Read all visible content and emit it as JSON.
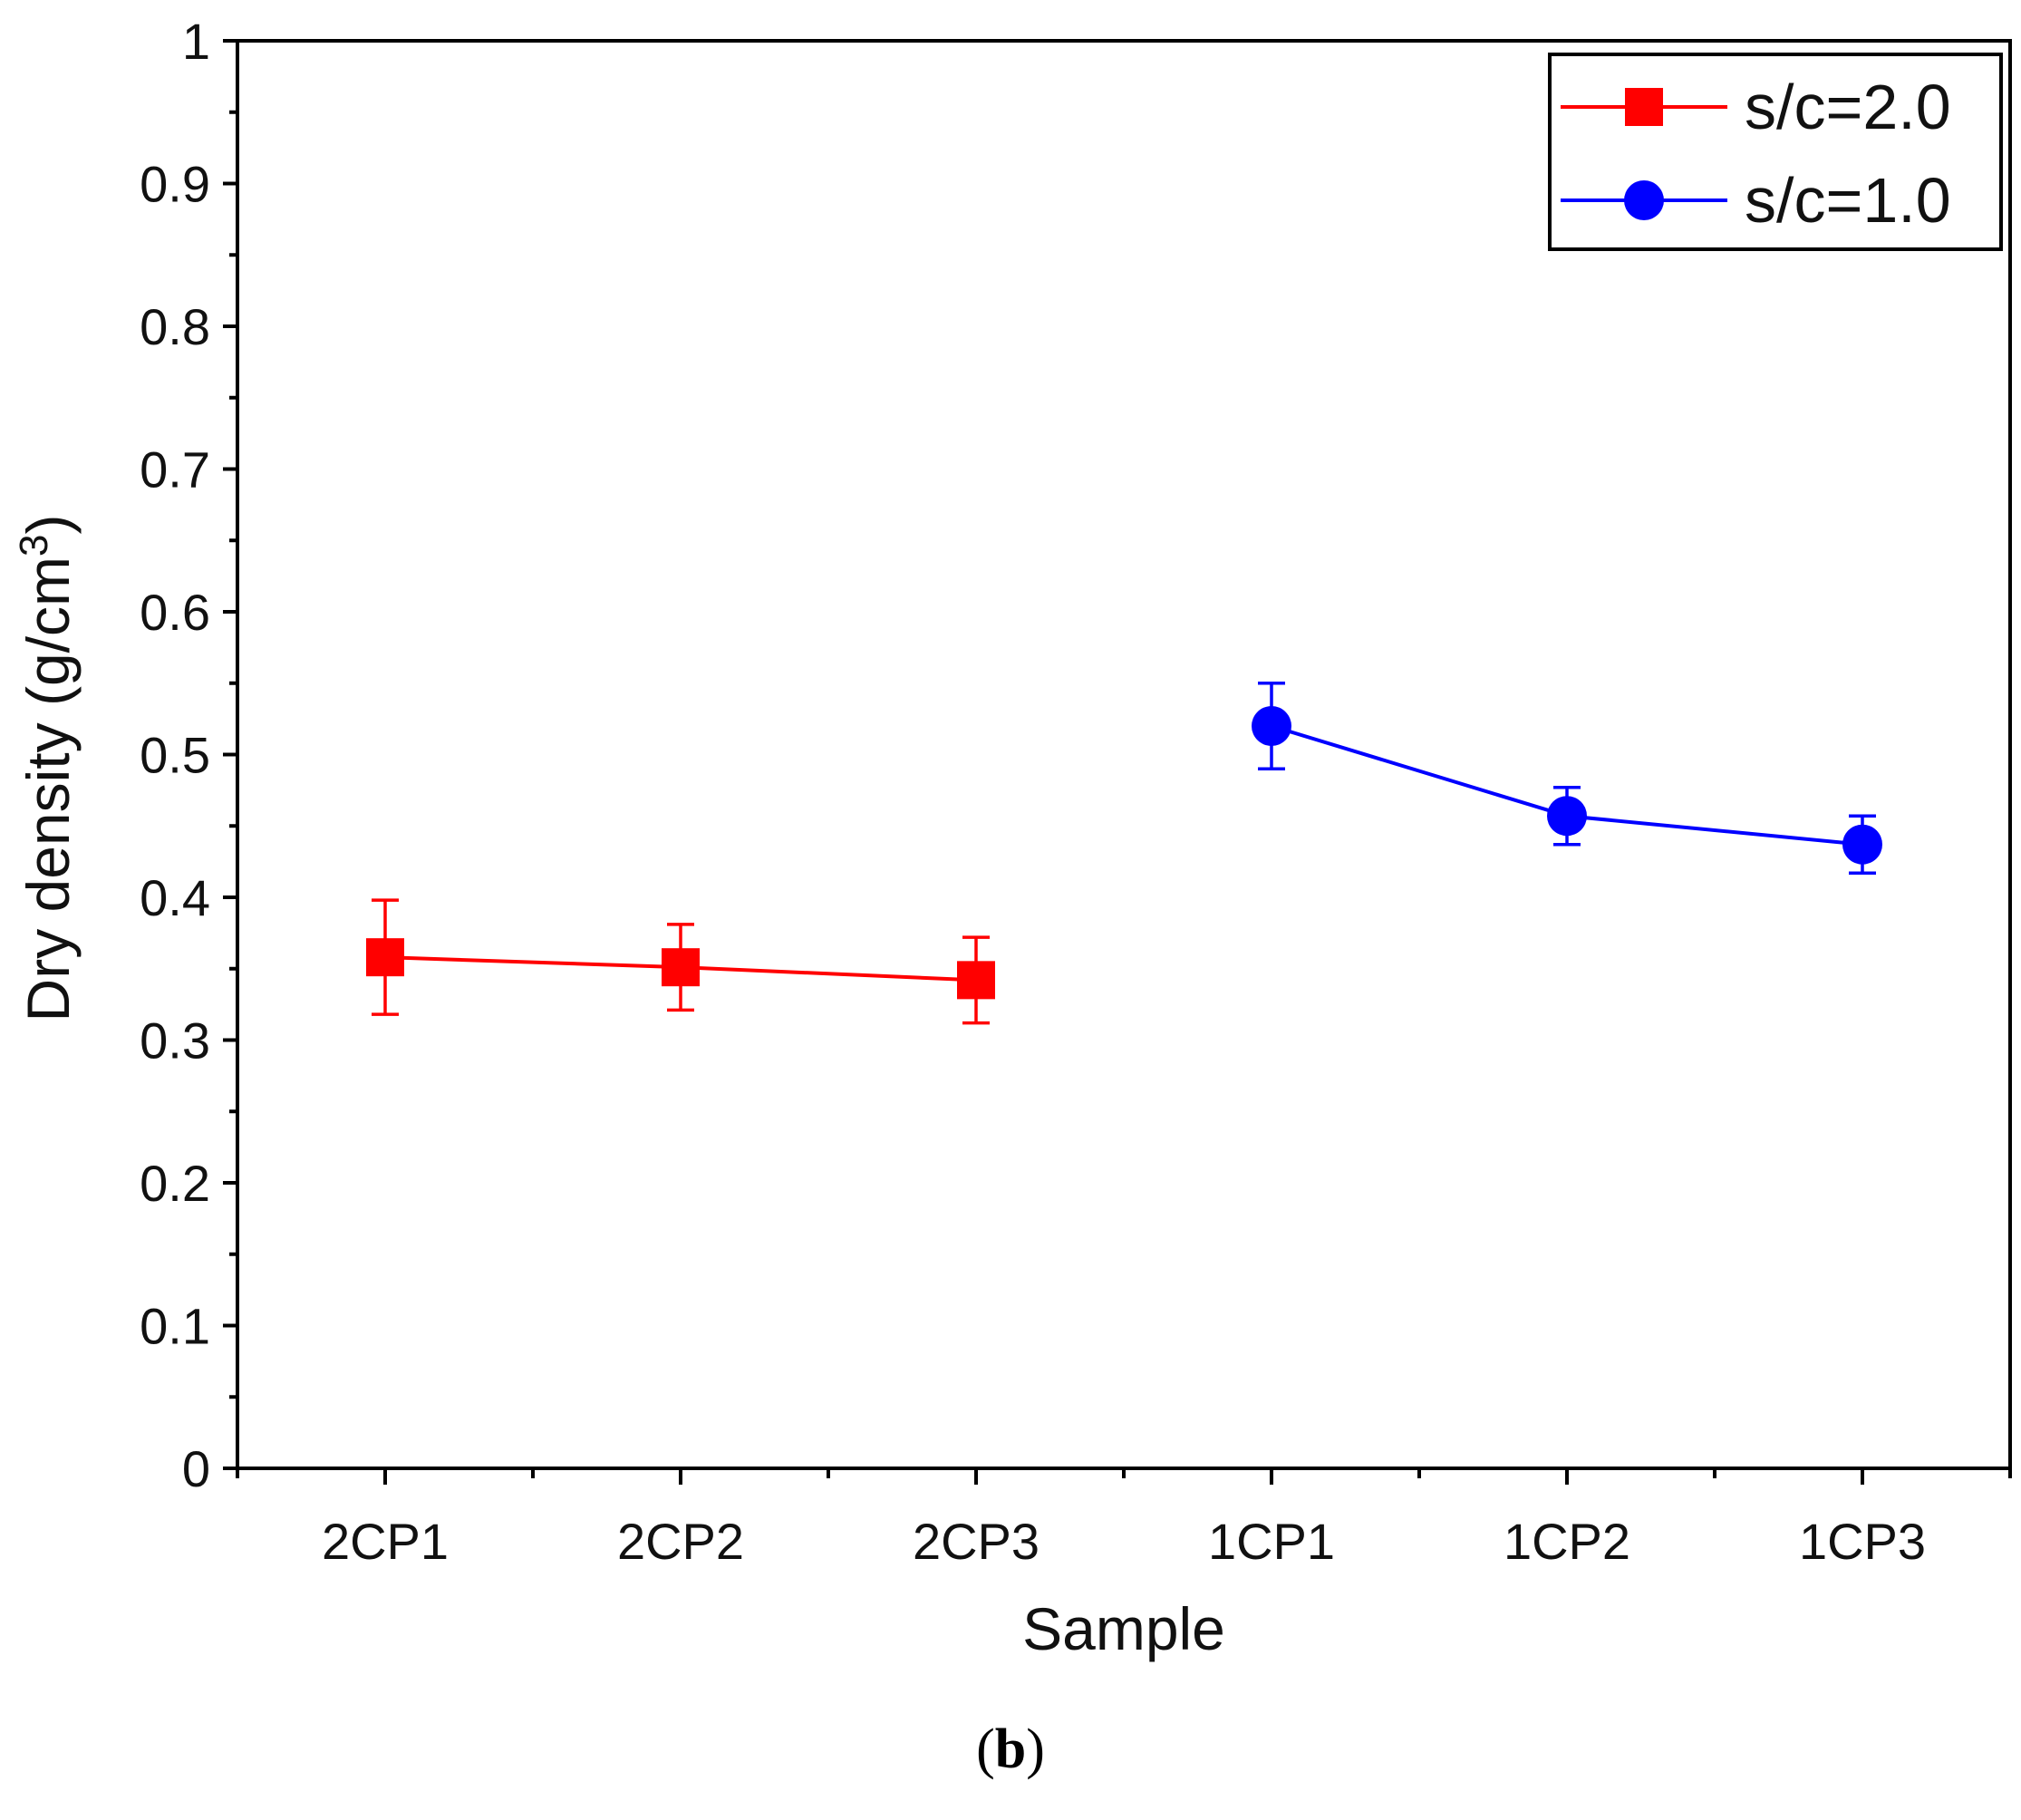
{
  "chart_data": {
    "type": "line",
    "title": "",
    "xlabel": "Sample",
    "ylabel_main": "Dry density (g/cm",
    "ylabel_sup": "3",
    "ylabel_close": ")",
    "ylim": [
      0,
      1
    ],
    "yticks": [
      0,
      0.1,
      0.2,
      0.3,
      0.4,
      0.5,
      0.6,
      0.7,
      0.8,
      0.9,
      1
    ],
    "ytick_labels": [
      "0",
      "0.1",
      "0.2",
      "0.3",
      "0.4",
      "0.5",
      "0.6",
      "0.7",
      "0.8",
      "0.9",
      "1"
    ],
    "categories": [
      "2CP1",
      "2CP2",
      "2CP3",
      "1CP1",
      "1CP2",
      "1CP3"
    ],
    "legend_position": "top-right",
    "series": [
      {
        "name": "s/c=2.0",
        "color": "#ff0000",
        "marker": "square",
        "points": [
          {
            "category": "2CP1",
            "value": 0.358,
            "err_low": 0.318,
            "err_high": 0.398
          },
          {
            "category": "2CP2",
            "value": 0.351,
            "err_low": 0.321,
            "err_high": 0.381
          },
          {
            "category": "2CP3",
            "value": 0.342,
            "err_low": 0.312,
            "err_high": 0.372
          }
        ]
      },
      {
        "name": "s/c=1.0",
        "color": "#0000ff",
        "marker": "circle",
        "points": [
          {
            "category": "1CP1",
            "value": 0.52,
            "err_low": 0.49,
            "err_high": 0.55
          },
          {
            "category": "1CP2",
            "value": 0.457,
            "err_low": 0.437,
            "err_high": 0.477
          },
          {
            "category": "1CP3",
            "value": 0.437,
            "err_low": 0.417,
            "err_high": 0.457
          }
        ]
      }
    ]
  },
  "caption": {
    "open": "(",
    "letter": "b",
    "close": ")"
  }
}
